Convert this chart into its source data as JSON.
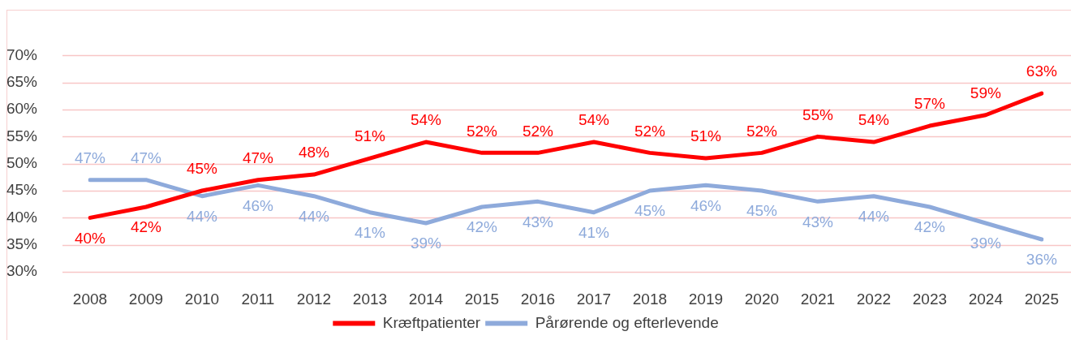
{
  "chart_data": {
    "type": "line",
    "categories": [
      "2008",
      "2009",
      "2010",
      "2011",
      "2012",
      "2013",
      "2014",
      "2015",
      "2016",
      "2017",
      "2018",
      "2019",
      "2020",
      "2021",
      "2022",
      "2023",
      "2024",
      "2025"
    ],
    "series": [
      {
        "name": "Kræftpatienter",
        "color": "#ff0000",
        "values": [
          40,
          42,
          45,
          47,
          48,
          51,
          54,
          52,
          52,
          54,
          52,
          51,
          52,
          55,
          54,
          57,
          59,
          63
        ],
        "value_labels": [
          "40%",
          "42%",
          "45%",
          "47%",
          "48%",
          "51%",
          "54%",
          "52%",
          "52%",
          "54%",
          "52%",
          "51%",
          "52%",
          "55%",
          "54%",
          "57%",
          "59%",
          "63%"
        ]
      },
      {
        "name": "Pårørende og efterlevende",
        "color": "#8eaadb",
        "values": [
          47,
          47,
          44,
          46,
          44,
          41,
          39,
          42,
          43,
          41,
          45,
          46,
          45,
          43,
          44,
          42,
          39,
          36
        ],
        "value_labels": [
          "47%",
          "47%",
          "44%",
          "46%",
          "44%",
          "41%",
          "39%",
          "42%",
          "43%",
          "41%",
          "45%",
          "46%",
          "45%",
          "43%",
          "44%",
          "42%",
          "39%",
          "36%"
        ]
      }
    ],
    "ylim": [
      30,
      70
    ],
    "yticks": [
      {
        "value": 30,
        "label": "30%"
      },
      {
        "value": 35,
        "label": "35%"
      },
      {
        "value": 40,
        "label": "40%"
      },
      {
        "value": 45,
        "label": "45%"
      },
      {
        "value": 50,
        "label": "50%"
      },
      {
        "value": 55,
        "label": "55%"
      },
      {
        "value": 60,
        "label": "60%"
      },
      {
        "value": 65,
        "label": "65%"
      },
      {
        "value": 70,
        "label": "70%"
      }
    ],
    "grid": "y",
    "legend": "bottom",
    "marker": "none",
    "line_style": "solid"
  }
}
